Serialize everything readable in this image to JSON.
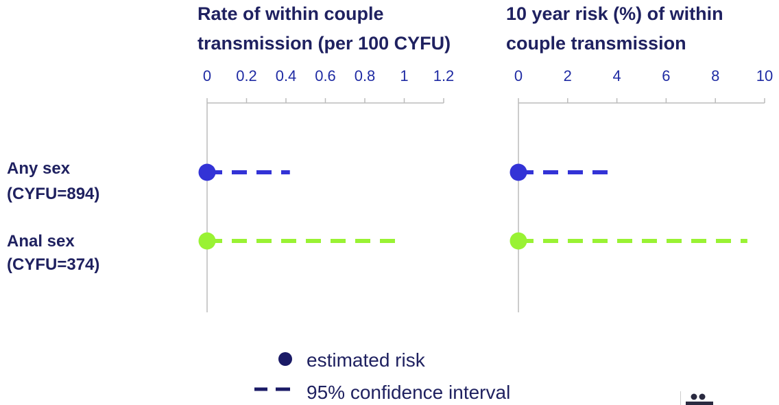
{
  "colors": {
    "any_sex": "#3333d6",
    "anal_sex": "#99f233",
    "title_text": "#1f2160",
    "tick_text": "#1f2ba3",
    "axis": "#bbbbbb",
    "legend_dot": "#1a1a66"
  },
  "rows": [
    {
      "label_line1": "Any sex",
      "label_line2": "(CYFU=894)"
    },
    {
      "label_line1": "Anal sex",
      "label_line2": "(CYFU=374)"
    }
  ],
  "legend": {
    "point_label": "estimated risk",
    "interval_label": "95% confidence interval"
  },
  "chart_data": [
    {
      "type": "forest",
      "title_line1": "Rate of within couple",
      "title_line2": "transmission (per 100 CYFU)",
      "xlim": [
        0,
        1.2
      ],
      "ticks": [
        0,
        0.2,
        0.4,
        0.6,
        0.8,
        1,
        1.2
      ],
      "tick_labels": [
        "0",
        "0.2",
        "0.4",
        "0.6",
        "0.8",
        "1",
        "1.2"
      ],
      "series": [
        {
          "name": "Any sex",
          "estimate": 0,
          "ci_lower": 0,
          "ci_upper": 0.42
        },
        {
          "name": "Anal sex",
          "estimate": 0,
          "ci_lower": 0,
          "ci_upper": 1.0
        }
      ]
    },
    {
      "type": "forest",
      "title_line1": "10 year risk (%) of within",
      "title_line2": "couple transmission",
      "xlim": [
        0,
        10
      ],
      "ticks": [
        0,
        2,
        4,
        6,
        8,
        10
      ],
      "tick_labels": [
        "0",
        "2",
        "4",
        "6",
        "8",
        "10"
      ],
      "series": [
        {
          "name": "Any sex",
          "estimate": 0,
          "ci_lower": 0,
          "ci_upper": 4.0
        },
        {
          "name": "Anal sex",
          "estimate": 0,
          "ci_lower": 0,
          "ci_upper": 9.3
        }
      ]
    }
  ]
}
